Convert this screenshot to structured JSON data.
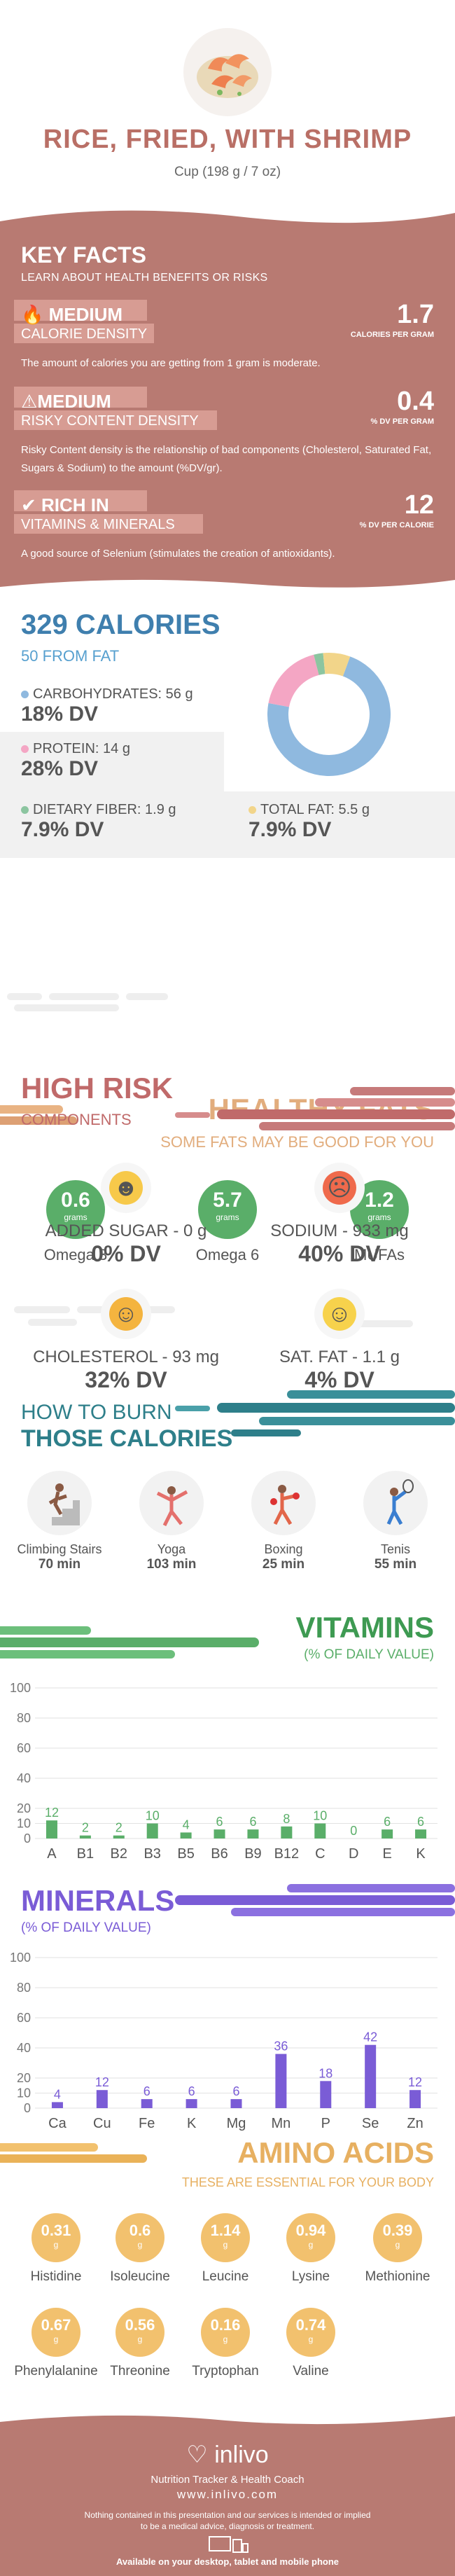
{
  "header": {
    "title": "RICE, FRIED, WITH SHRIMP",
    "serving": "Cup (198 g / 7 oz)",
    "food_icon": "fried-rice-shrimp-photo"
  },
  "key_facts": {
    "title": "KEY FACTS",
    "subtitle": "LEARN ABOUT HEALTH BENEFITS OR RISKS",
    "facts": [
      {
        "icon": "flame-icon",
        "level": "MEDIUM",
        "category": "CALORIE DENSITY",
        "value": "1.7",
        "unit": "CALORIES PER GRAM",
        "desc": "The amount of calories you are getting from 1 gram is moderate."
      },
      {
        "icon": "warning-icon",
        "level": "MEDIUM",
        "category": "RISKY CONTENT DENSITY",
        "value": "0.4",
        "unit": "% DV PER GRAM",
        "desc": "Risky Content density is the relationship of bad components (Cholesterol, Saturated Fat, Sugars & Sodium) to the amount (%DV/gr)."
      },
      {
        "icon": "checkmark-icon",
        "level": "RICH  IN",
        "category": "VITAMINS & MINERALS",
        "value": "12",
        "unit": "% DV PER CALORIE",
        "desc": "A good source of Selenium (stimulates the creation of antioxidants)."
      }
    ]
  },
  "calories": {
    "title": "329 CALORIES",
    "from_fat": "50 FROM FAT",
    "macros": [
      {
        "label": "CARBOHYDRATES: 56 g",
        "dv": "18% DV",
        "color": "#8fb9df"
      },
      {
        "label": "PROTEIN: 14 g",
        "dv": "28% DV",
        "color": "#f4a6c4"
      },
      {
        "label": "DIETARY FIBER: 1.9 g",
        "dv": "7.9% DV",
        "color": "#8cc5a0"
      },
      {
        "label": "TOTAL FAT: 5.5 g",
        "dv": "7.9% DV",
        "color": "#f2d58a"
      }
    ],
    "donut": [
      {
        "name": "carbohydrates",
        "value": 56,
        "color": "#8fb9df"
      },
      {
        "name": "protein",
        "value": 14,
        "color": "#f4a6c4"
      },
      {
        "name": "fiber",
        "value": 1.9,
        "color": "#8cc5a0"
      },
      {
        "name": "fat",
        "value": 5.5,
        "color": "#f2d58a"
      }
    ]
  },
  "healthy_fats": {
    "title": "HEALTHY FATS",
    "subtitle": "SOME FATS MAY BE GOOD FOR YOU",
    "items": [
      {
        "value": "0.6",
        "unit": "grams",
        "name": "Omega 3"
      },
      {
        "value": "5.7",
        "unit": "grams",
        "name": "Omega 6"
      },
      {
        "value": "1.2",
        "unit": "grams",
        "name": "MUFAs"
      }
    ]
  },
  "high_risk": {
    "title": "HIGH RISK",
    "subtitle": "COMPONENTS",
    "items": [
      {
        "label": "ADDED SUGAR - 0 g",
        "dv": "0% DV",
        "face": "grin-face-icon",
        "color": "#f7c94a"
      },
      {
        "label": "SODIUM - 933 mg",
        "dv": "40% DV",
        "face": "frown-face-icon",
        "color": "#ef6a4c"
      },
      {
        "label": "CHOLESTEROL - 93 mg",
        "dv": "32% DV",
        "face": "smile-face-icon",
        "color": "#f4b43f"
      },
      {
        "label": "SAT. FAT - 1.1 g",
        "dv": "4% DV",
        "face": "smile-face-icon",
        "color": "#f7d24c"
      }
    ]
  },
  "burn": {
    "title1": "HOW TO BURN",
    "title2": "THOSE CALORIES",
    "activities": [
      {
        "name": "Climbing Stairs",
        "time": "70 min",
        "icon": "stairs-climbing-icon"
      },
      {
        "name": "Yoga",
        "time": "103 min",
        "icon": "yoga-icon"
      },
      {
        "name": "Boxing",
        "time": "25 min",
        "icon": "boxing-icon"
      },
      {
        "name": "Tenis",
        "time": "55 min",
        "icon": "tennis-icon"
      }
    ]
  },
  "vitamins": {
    "title": "VITAMINS",
    "subtitle": "(% OF DAILY VALUE)",
    "color": "#5aae69"
  },
  "minerals": {
    "title": "MINERALS",
    "subtitle": "(% OF DAILY VALUE)",
    "color": "#7a5cd6"
  },
  "chart_data": [
    {
      "type": "bar",
      "title": "VITAMINS",
      "categories": [
        "A",
        "B1",
        "B2",
        "B3",
        "B5",
        "B6",
        "B9",
        "B12",
        "C",
        "D",
        "E",
        "K"
      ],
      "values": [
        12,
        2,
        2,
        10,
        4,
        6,
        6,
        8,
        10,
        0,
        6,
        6
      ],
      "yticks": [
        0,
        10,
        20,
        40,
        60,
        80,
        100
      ],
      "ylim": [
        0,
        100
      ]
    },
    {
      "type": "bar",
      "title": "MINERALS",
      "categories": [
        "Ca",
        "Cu",
        "Fe",
        "K",
        "Mg",
        "Mn",
        "P",
        "Se",
        "Zn"
      ],
      "values": [
        4,
        12,
        6,
        6,
        6,
        36,
        18,
        42,
        12
      ],
      "yticks": [
        0,
        10,
        20,
        40,
        60,
        80,
        100
      ],
      "ylim": [
        0,
        100
      ]
    }
  ],
  "amino": {
    "title": "AMINO ACIDS",
    "subtitle": "THESE ARE ESSENTIAL FOR YOUR BODY",
    "items": [
      {
        "value": "0.31",
        "unit": "g",
        "name": "Histidine"
      },
      {
        "value": "0.6",
        "unit": "g",
        "name": "Isoleucine"
      },
      {
        "value": "1.14",
        "unit": "g",
        "name": "Leucine"
      },
      {
        "value": "0.94",
        "unit": "g",
        "name": "Lysine"
      },
      {
        "value": "0.39",
        "unit": "g",
        "name": "Methionine"
      },
      {
        "value": "0.67",
        "unit": "g",
        "name": "Phenylalanine"
      },
      {
        "value": "0.56",
        "unit": "g",
        "name": "Threonine"
      },
      {
        "value": "0.16",
        "unit": "g",
        "name": "Tryptophan"
      },
      {
        "value": "0.74",
        "unit": "g",
        "name": "Valine"
      }
    ]
  },
  "footer": {
    "brand": "inlivo",
    "tagline": "Nutrition Tracker & Health Coach",
    "url": "www.inlivo.com",
    "disclaimer": "Nothing contained in this presentation and our services is intended or implied to be a medical advice, diagnosis or treatment.",
    "available": "Available on your desktop, tablet and mobile phone"
  }
}
